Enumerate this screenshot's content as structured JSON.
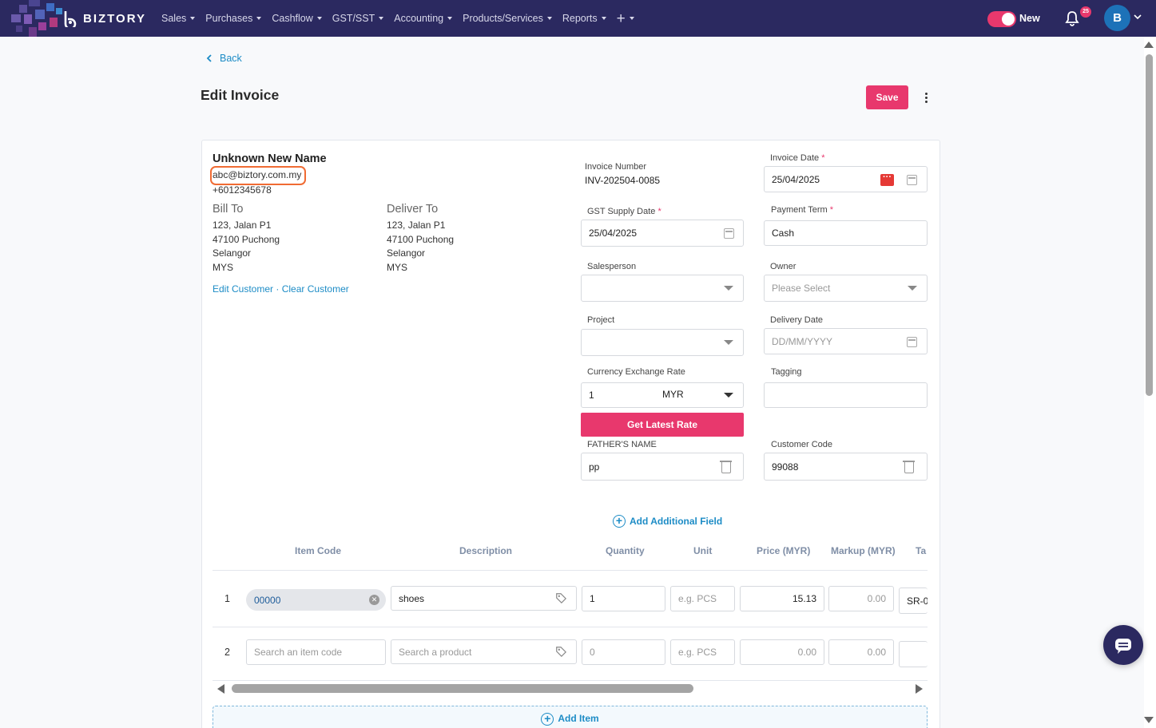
{
  "brand": {
    "name": "BIZTORY"
  },
  "nav": {
    "items": [
      {
        "label": "Sales"
      },
      {
        "label": "Purchases"
      },
      {
        "label": "Cashflow"
      },
      {
        "label": "GST/SST"
      },
      {
        "label": "Accounting"
      },
      {
        "label": "Products/Services"
      },
      {
        "label": "Reports"
      }
    ],
    "plus": "+",
    "toggle_label": "New",
    "notification_count": "25",
    "avatar_initial": "B"
  },
  "page": {
    "back_label": "Back",
    "title": "Edit Invoice",
    "save_label": "Save"
  },
  "customer": {
    "name": "Unknown New Name",
    "email": "abc@biztory.com.my",
    "phone": "+6012345678",
    "bill_to": {
      "heading": "Bill To",
      "lines": [
        "123, Jalan P1",
        "47100 Puchong",
        "Selangor",
        "MYS"
      ]
    },
    "deliver_to": {
      "heading": "Deliver To",
      "lines": [
        "123, Jalan P1",
        "47100 Puchong",
        "Selangor",
        "MYS"
      ]
    },
    "edit_link": "Edit Customer",
    "separator": "·",
    "clear_link": "Clear Customer"
  },
  "form": {
    "invoice_number_label": "Invoice Number",
    "invoice_number": "INV-202504-0085",
    "invoice_date_label": "Invoice Date",
    "invoice_date": "25/04/2025",
    "gst_supply_date_label": "GST Supply Date",
    "gst_supply_date": "25/04/2025",
    "payment_term_label": "Payment Term",
    "payment_term": "Cash",
    "salesperson_label": "Salesperson",
    "owner_label": "Owner",
    "owner_placeholder": "Please Select",
    "project_label": "Project",
    "delivery_date_label": "Delivery Date",
    "delivery_date_placeholder": "DD/MM/YYYY",
    "currency_rate_label": "Currency Exchange Rate",
    "currency_rate": "1",
    "currency": "MYR",
    "tagging_label": "Tagging",
    "get_rate_label": "Get Latest Rate",
    "father_name_label": "FATHER'S NAME",
    "father_name": "pp",
    "customer_code_label": "Customer Code",
    "customer_code": "99088",
    "required_mark": "*",
    "add_field_label": "Add Additional Field"
  },
  "items_table": {
    "headers": [
      "Item Code",
      "Description",
      "Quantity",
      "Unit",
      "Price (MYR)",
      "Markup (MYR)",
      "Ta"
    ],
    "rows": [
      {
        "num": "1",
        "item_code": "00000",
        "description": "shoes",
        "quantity": "1",
        "unit_placeholder": "e.g. PCS",
        "price": "15.13",
        "markup_placeholder": "0.00",
        "tax": "SR-0"
      },
      {
        "num": "2",
        "item_code_placeholder": "Search an item code",
        "description_placeholder": "Search a product",
        "quantity_placeholder": "0",
        "unit_placeholder": "e.g. PCS",
        "price_placeholder": "0.00",
        "markup_placeholder": "0.00"
      }
    ],
    "add_item_label": "Add Item"
  },
  "colors": {
    "topbar": "#2b2960",
    "accent": "#e8386d",
    "link": "#1d8cc6",
    "highlight": "#f06b33"
  }
}
